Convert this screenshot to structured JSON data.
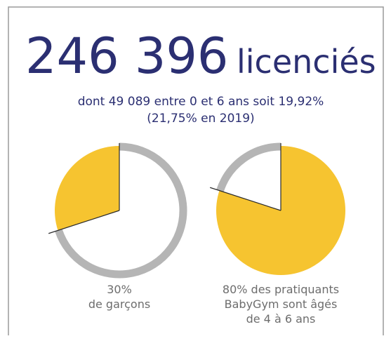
{
  "header": {
    "number": "246 396",
    "unit": "licenciés",
    "subtitle": [
      "dont 49 089 entre 0 et 6 ans soit 19,92%",
      "(21,75% en 2019)"
    ]
  },
  "chart_data": [
    {
      "type": "pie",
      "values": [
        70,
        30
      ],
      "value_labels": [
        null,
        "30%"
      ],
      "colors": [
        "#ffffff",
        "#f6c430"
      ],
      "ring_color": "#b5b5b5",
      "caption": [
        "de garçons"
      ]
    },
    {
      "type": "pie",
      "values": [
        80,
        20
      ],
      "value_labels": [
        "80% des pratiquants",
        null
      ],
      "colors": [
        "#f6c430",
        "#ffffff"
      ],
      "ring_color": "#b5b5b5",
      "caption": [
        "BabyGym sont âgés",
        "de 4 à 6 ans"
      ]
    }
  ]
}
